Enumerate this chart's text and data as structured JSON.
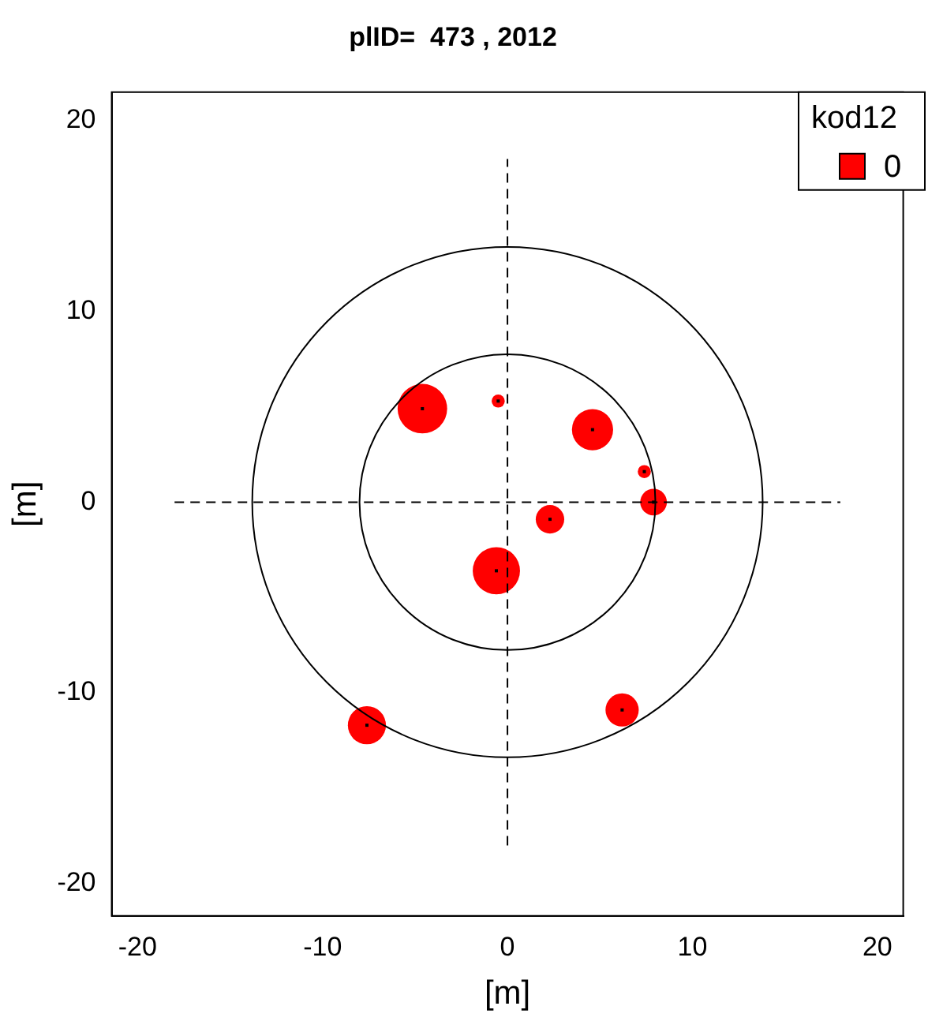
{
  "chart_data": {
    "type": "bubble",
    "title": "plID=  473 , 2012",
    "xlabel": "[m]",
    "ylabel": "[m]",
    "legend_title": "kod12",
    "legend": "top right",
    "grid": false,
    "xlim": [
      -21.4,
      21.4
    ],
    "ylim": [
      -21.7,
      21.5
    ],
    "xticks": [
      -20,
      -10,
      0,
      10,
      20
    ],
    "yticks": [
      -20,
      -10,
      0,
      10,
      20
    ],
    "series": [
      {
        "type": "line",
        "color": "#000000",
        "line_style": "dashed",
        "marker": "none",
        "x": [
          -18,
          18
        ],
        "values": [
          0,
          0
        ]
      },
      {
        "type": "line",
        "color": "#000000",
        "line_style": "dashed",
        "marker": "none",
        "x": [
          0,
          0
        ],
        "values": [
          -18,
          18
        ]
      },
      {
        "type": "bubble",
        "name": "0",
        "color": "#ff0000",
        "x": [
          -4.6,
          -0.5,
          4.6,
          7.4,
          7.9,
          2.3,
          -0.6,
          6.2,
          -7.6
        ],
        "values": [
          4.9,
          5.3,
          3.8,
          1.6,
          0,
          -0.9,
          -3.6,
          -10.9,
          -11.7
        ],
        "sizes": [
          1,
          0.07,
          0.69,
          0.07,
          0.29,
          0.33,
          0.91,
          0.45,
          0.59
        ]
      }
    ]
  }
}
